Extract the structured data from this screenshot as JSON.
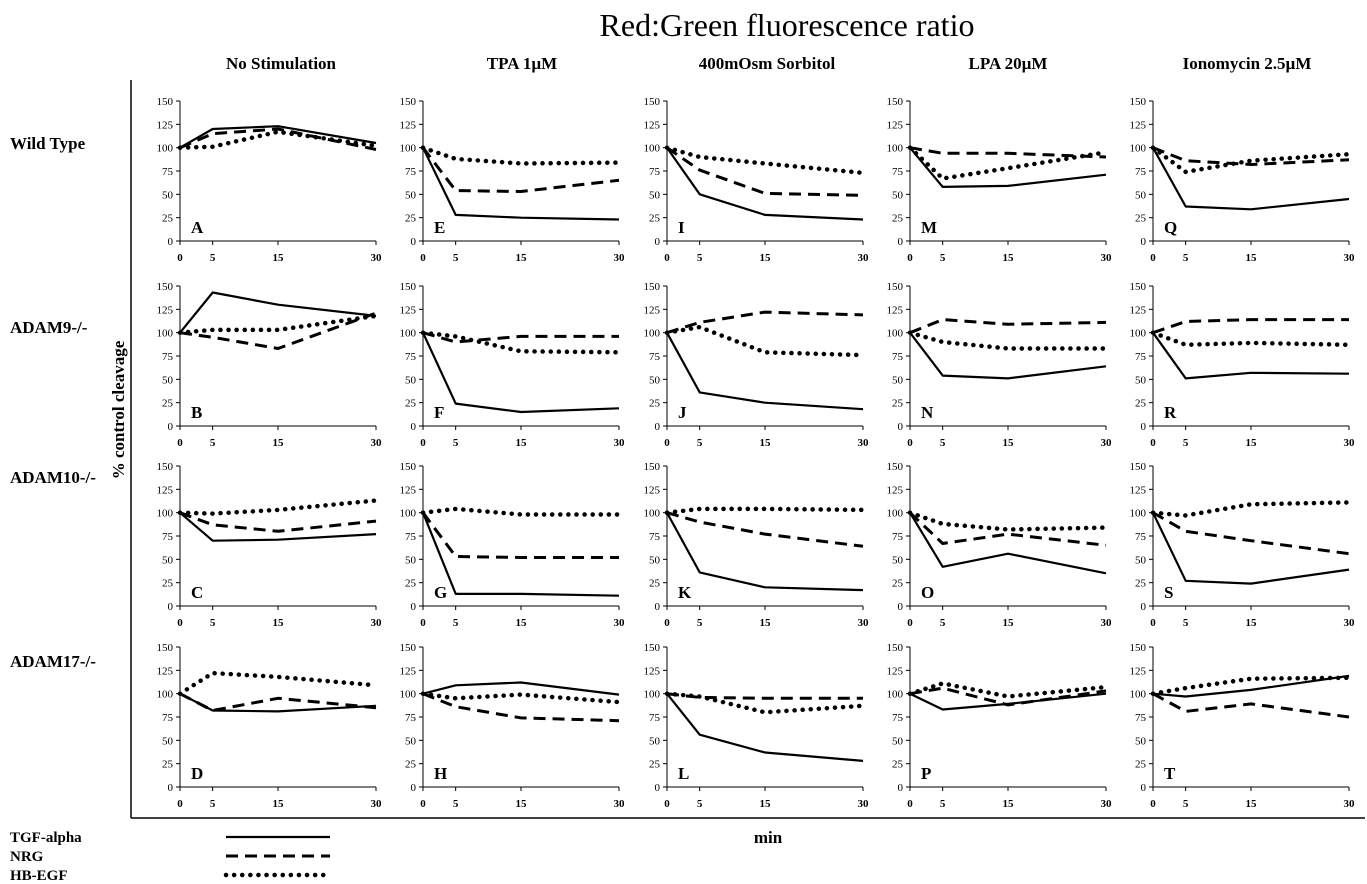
{
  "title": "Red:Green fluorescence ratio",
  "ylabel": "% control cleavage",
  "xlabel": "min",
  "conditions": [
    "No Stimulation",
    "TPA 1µM",
    "400mOsm Sorbitol",
    "LPA 20µM",
    "Ionomycin 2.5µM"
  ],
  "genotypes": [
    "Wild Type",
    "ADAM9-/-",
    "ADAM10-/-",
    "ADAM17-/-"
  ],
  "legend": [
    {
      "name": "TGF-alpha",
      "style": "solid"
    },
    {
      "name": "NRG",
      "style": "dashed"
    },
    {
      "name": "HB-EGF",
      "style": "dotted"
    }
  ],
  "axes": {
    "x_ticks": [
      0,
      5,
      15,
      30
    ],
    "y_ticks": [
      0,
      25,
      50,
      75,
      100,
      125,
      150
    ],
    "ylim": [
      0,
      150
    ]
  },
  "chart_data": {
    "type": "line",
    "x": [
      0,
      5,
      15,
      30
    ],
    "series_names": [
      "TGF-alpha",
      "NRG",
      "HB-EGF"
    ],
    "panels": [
      {
        "letter": "A",
        "row": 0,
        "col": 0,
        "values": {
          "TGF-alpha": [
            100,
            120,
            123,
            105
          ],
          "NRG": [
            100,
            115,
            120,
            98
          ],
          "HB-EGF": [
            100,
            101,
            117,
            102
          ]
        }
      },
      {
        "letter": "E",
        "row": 0,
        "col": 1,
        "values": {
          "TGF-alpha": [
            100,
            28,
            25,
            23
          ],
          "NRG": [
            100,
            54,
            53,
            65
          ],
          "HB-EGF": [
            100,
            88,
            83,
            84
          ]
        }
      },
      {
        "letter": "I",
        "row": 0,
        "col": 2,
        "values": {
          "TGF-alpha": [
            100,
            50,
            28,
            23
          ],
          "NRG": [
            100,
            76,
            51,
            49
          ],
          "HB-EGF": [
            100,
            90,
            83,
            73
          ]
        }
      },
      {
        "letter": "M",
        "row": 0,
        "col": 3,
        "values": {
          "TGF-alpha": [
            100,
            58,
            59,
            71
          ],
          "NRG": [
            100,
            94,
            94,
            90
          ],
          "HB-EGF": [
            100,
            67,
            78,
            95
          ]
        }
      },
      {
        "letter": "Q",
        "row": 0,
        "col": 4,
        "values": {
          "TGF-alpha": [
            100,
            37,
            34,
            45
          ],
          "NRG": [
            100,
            86,
            82,
            87
          ],
          "HB-EGF": [
            100,
            74,
            86,
            93
          ]
        }
      },
      {
        "letter": "B",
        "row": 1,
        "col": 0,
        "values": {
          "TGF-alpha": [
            100,
            143,
            130,
            118
          ],
          "NRG": [
            100,
            95,
            83,
            121
          ],
          "HB-EGF": [
            100,
            103,
            103,
            118
          ]
        }
      },
      {
        "letter": "F",
        "row": 1,
        "col": 1,
        "values": {
          "TGF-alpha": [
            100,
            24,
            15,
            19
          ],
          "NRG": [
            100,
            90,
            96,
            96
          ],
          "HB-EGF": [
            100,
            96,
            80,
            79
          ]
        }
      },
      {
        "letter": "J",
        "row": 1,
        "col": 2,
        "values": {
          "TGF-alpha": [
            100,
            36,
            25,
            18
          ],
          "NRG": [
            100,
            111,
            122,
            119
          ],
          "HB-EGF": [
            100,
            106,
            79,
            76
          ]
        }
      },
      {
        "letter": "N",
        "row": 1,
        "col": 3,
        "values": {
          "TGF-alpha": [
            100,
            54,
            51,
            64
          ],
          "NRG": [
            100,
            114,
            109,
            111
          ],
          "HB-EGF": [
            100,
            90,
            83,
            83
          ]
        }
      },
      {
        "letter": "R",
        "row": 1,
        "col": 4,
        "values": {
          "TGF-alpha": [
            100,
            51,
            57,
            56
          ],
          "NRG": [
            100,
            112,
            114,
            114
          ],
          "HB-EGF": [
            100,
            87,
            89,
            87
          ]
        }
      },
      {
        "letter": "C",
        "row": 2,
        "col": 0,
        "values": {
          "TGF-alpha": [
            100,
            70,
            71,
            77
          ],
          "NRG": [
            100,
            87,
            80,
            91
          ],
          "HB-EGF": [
            100,
            99,
            103,
            113
          ]
        }
      },
      {
        "letter": "G",
        "row": 2,
        "col": 1,
        "values": {
          "TGF-alpha": [
            100,
            13,
            13,
            11
          ],
          "NRG": [
            100,
            53,
            52,
            52
          ],
          "HB-EGF": [
            100,
            104,
            98,
            98
          ]
        }
      },
      {
        "letter": "K",
        "row": 2,
        "col": 2,
        "values": {
          "TGF-alpha": [
            100,
            36,
            20,
            17
          ],
          "NRG": [
            100,
            90,
            77,
            64
          ],
          "HB-EGF": [
            100,
            104,
            104,
            103
          ]
        }
      },
      {
        "letter": "O",
        "row": 2,
        "col": 3,
        "values": {
          "TGF-alpha": [
            100,
            42,
            56,
            35
          ],
          "NRG": [
            100,
            67,
            77,
            65
          ],
          "HB-EGF": [
            100,
            88,
            82,
            84
          ]
        }
      },
      {
        "letter": "S",
        "row": 2,
        "col": 4,
        "values": {
          "TGF-alpha": [
            100,
            27,
            24,
            39
          ],
          "NRG": [
            100,
            80,
            70,
            56
          ],
          "HB-EGF": [
            100,
            97,
            109,
            111
          ]
        }
      },
      {
        "letter": "D",
        "row": 3,
        "col": 0,
        "values": {
          "TGF-alpha": [
            100,
            82,
            81,
            87
          ],
          "NRG": [
            100,
            82,
            95,
            85
          ],
          "HB-EGF": [
            100,
            122,
            118,
            109
          ]
        }
      },
      {
        "letter": "H",
        "row": 3,
        "col": 1,
        "values": {
          "TGF-alpha": [
            100,
            109,
            112,
            99
          ],
          "NRG": [
            100,
            86,
            74,
            71
          ],
          "HB-EGF": [
            100,
            95,
            99,
            91
          ]
        }
      },
      {
        "letter": "L",
        "row": 3,
        "col": 2,
        "values": {
          "TGF-alpha": [
            100,
            56,
            37,
            28
          ],
          "NRG": [
            100,
            96,
            95,
            95
          ],
          "HB-EGF": [
            100,
            97,
            80,
            87
          ]
        }
      },
      {
        "letter": "P",
        "row": 3,
        "col": 3,
        "values": {
          "TGF-alpha": [
            100,
            83,
            89,
            100
          ],
          "NRG": [
            100,
            106,
            88,
            103
          ],
          "HB-EGF": [
            100,
            111,
            97,
            107
          ]
        }
      },
      {
        "letter": "T",
        "row": 3,
        "col": 4,
        "values": {
          "TGF-alpha": [
            100,
            97,
            104,
            119
          ],
          "NRG": [
            100,
            81,
            89,
            75
          ],
          "HB-EGF": [
            100,
            106,
            116,
            117
          ]
        }
      }
    ]
  }
}
